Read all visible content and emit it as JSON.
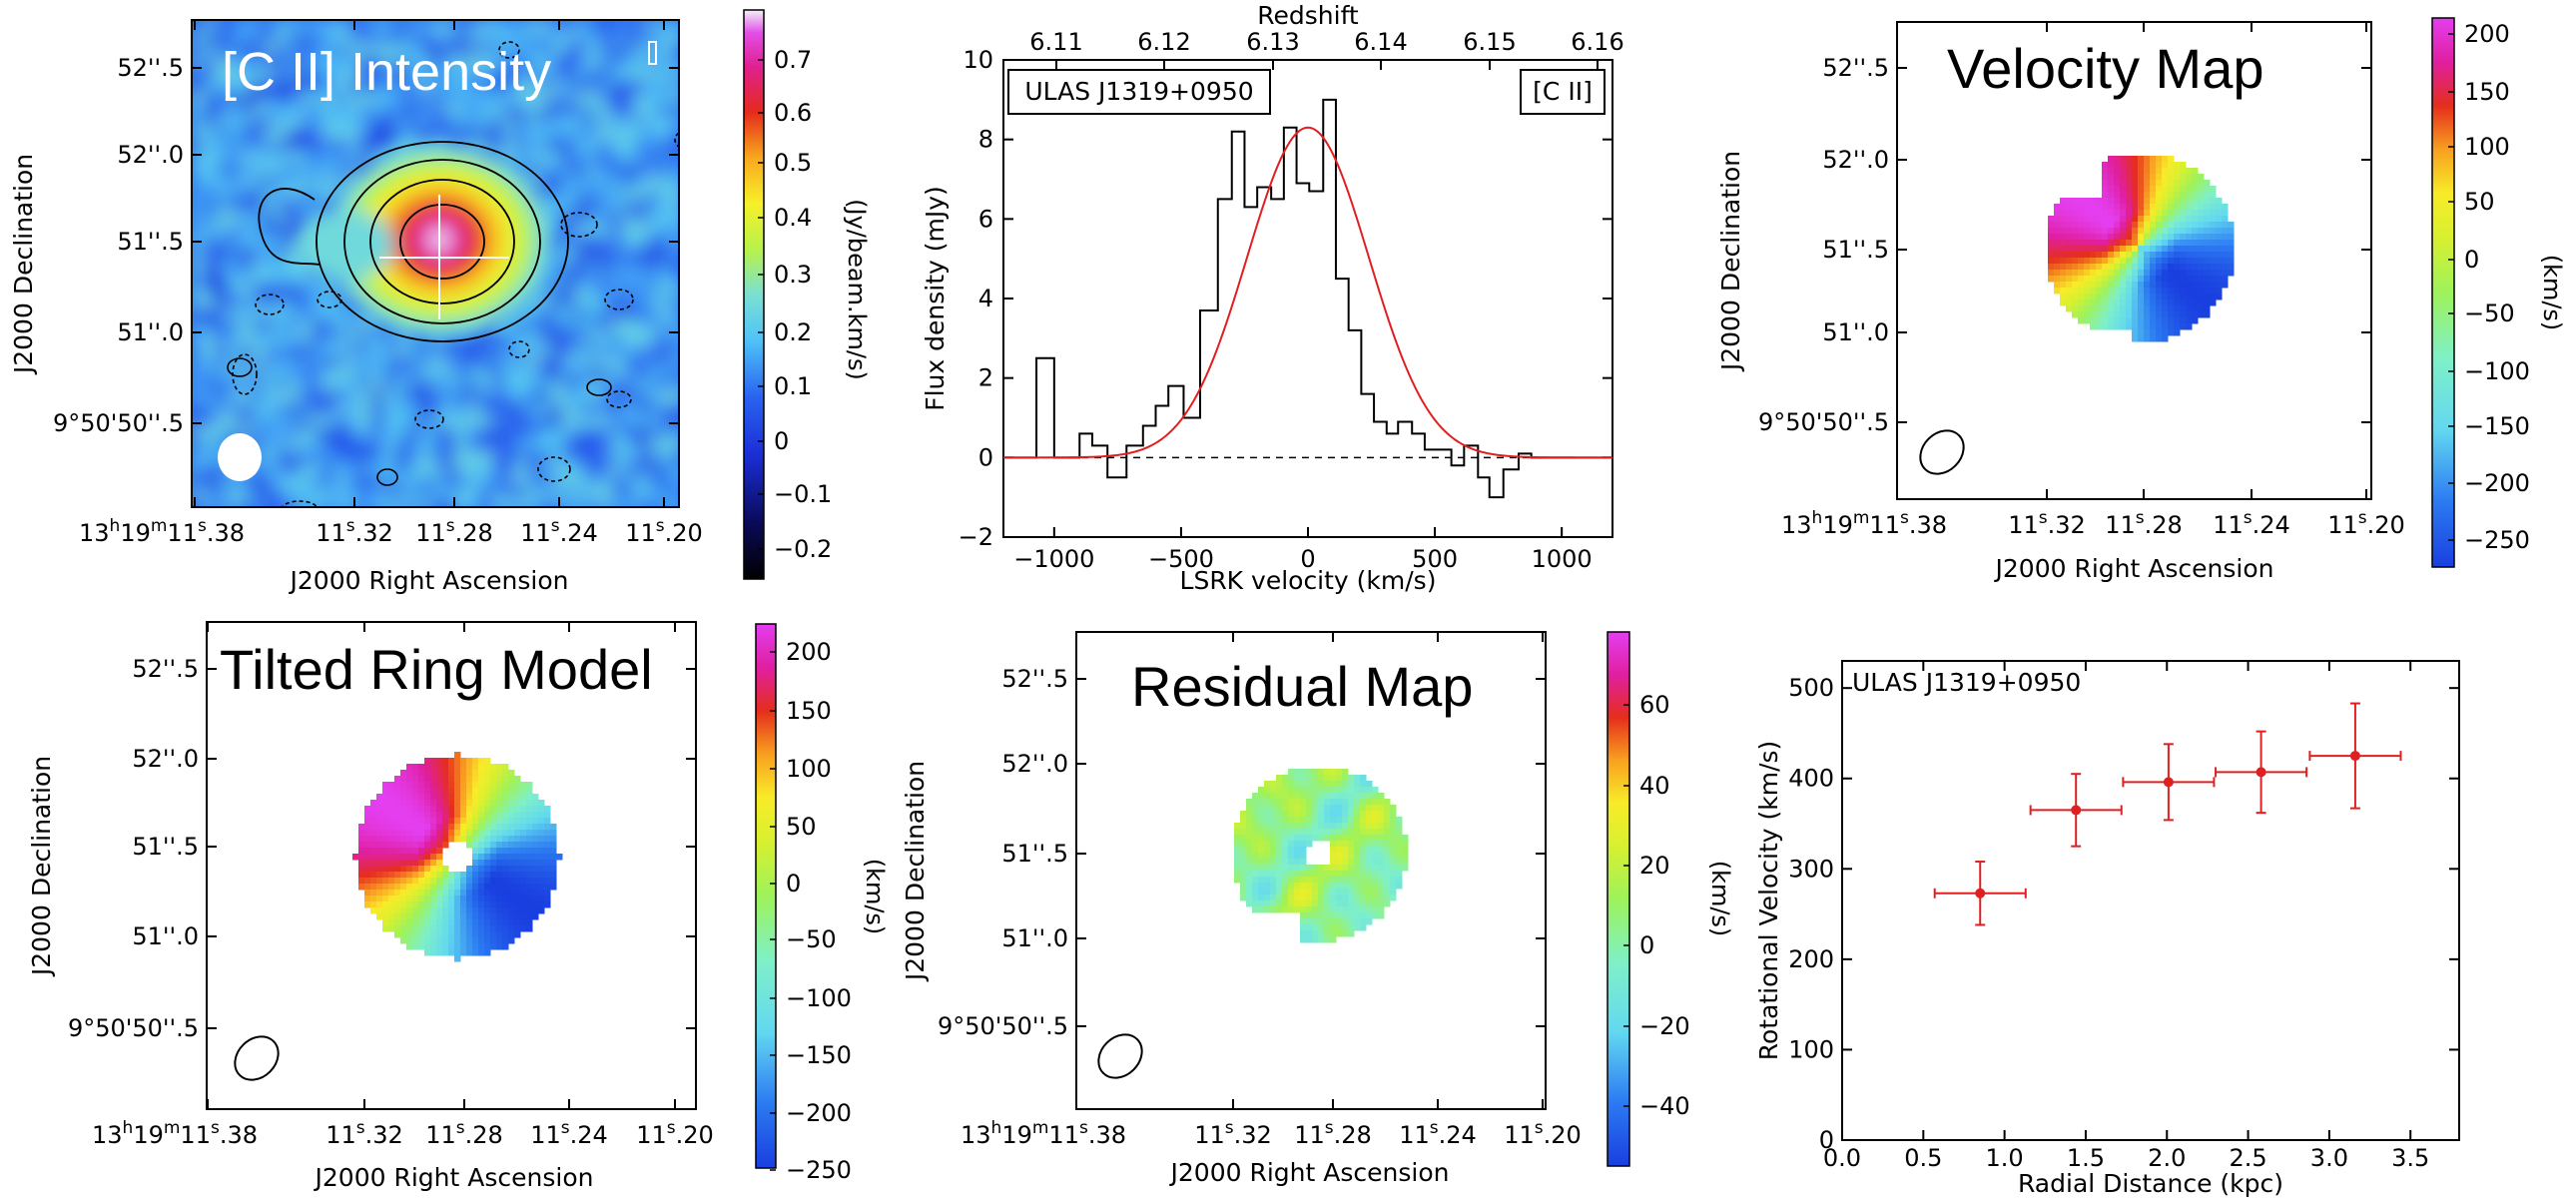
{
  "cbar_cmap": [
    [
      0.0,
      "#000000"
    ],
    [
      0.1,
      "#0a0a5a"
    ],
    [
      0.22,
      "#1b2fd8"
    ],
    [
      0.32,
      "#2a63f0"
    ],
    [
      0.42,
      "#4fc3f7"
    ],
    [
      0.5,
      "#7be0d2"
    ],
    [
      0.58,
      "#b8f24a"
    ],
    [
      0.66,
      "#f7f02a"
    ],
    [
      0.74,
      "#f9a81d"
    ],
    [
      0.82,
      "#e52b1b"
    ],
    [
      0.9,
      "#e0208f"
    ],
    [
      0.96,
      "#e24ee8"
    ],
    [
      1.0,
      "#f4f2f8"
    ]
  ],
  "vel_cmap": [
    [
      0.0,
      "#1a3fe0"
    ],
    [
      0.12,
      "#2c7bf2"
    ],
    [
      0.25,
      "#62d8f0"
    ],
    [
      0.38,
      "#7ff0c8"
    ],
    [
      0.5,
      "#9ef25a"
    ],
    [
      0.6,
      "#d8f030"
    ],
    [
      0.68,
      "#f8ec28"
    ],
    [
      0.76,
      "#f8a020"
    ],
    [
      0.84,
      "#e52e1c"
    ],
    [
      0.92,
      "#e01fa0"
    ],
    [
      1.0,
      "#e43ef0"
    ]
  ],
  "coords": {
    "dec_labels": [
      "52''.5",
      "52''.0",
      "51''.5",
      "51''.0",
      "9°50'50''.5"
    ],
    "ra_labels": [
      "13h19m11s.38",
      "11s.32",
      "11s.28",
      "11s.24",
      "11s.20"
    ],
    "ra_first_main": "13",
    "ra_first_h": "h",
    "ra_first_mid": "19",
    "ra_first_m": "m",
    "ra_first_end": "11",
    "ra_s": "s",
    "ra_tail": [
      ".38",
      ".32",
      ".28",
      ".24",
      ".20"
    ],
    "ra_head": [
      "11",
      "11",
      "11",
      "11"
    ],
    "xlabel": "J2000 Right Ascension",
    "ylabel": "J2000 Declination"
  },
  "panels": {
    "intensity": {
      "title": "[C II] Intensity",
      "cbar_label": "(Jy/beam.km/s)",
      "ticks": [
        "0.7",
        "0.6",
        "0.5",
        "0.4",
        "0.3",
        "0.2",
        "0.1",
        "0",
        "−0.1",
        "−0.2"
      ]
    },
    "velocity": {
      "title": "Velocity Map",
      "cbar_label": "(km/s)",
      "ticks": [
        "200",
        "150",
        "100",
        "50",
        "0",
        "−50",
        "−100",
        "−150",
        "−200",
        "−250"
      ]
    },
    "model": {
      "title": "Tilted Ring Model",
      "cbar_label": "(km/s)",
      "ticks": [
        "200",
        "150",
        "100",
        "50",
        "0",
        "−50",
        "−100",
        "−150",
        "−200",
        "−250"
      ]
    },
    "residual": {
      "title": "Residual Map",
      "cbar_label": "(km/s)",
      "ticks": [
        "60",
        "40",
        "20",
        "0",
        "−20",
        "−40"
      ]
    }
  },
  "spectrum_chart": {
    "type": "line",
    "xlabel": "LSRK velocity (km/s)",
    "ylabel": "Flux density (mJy)",
    "top_label": "Redshift",
    "top_ticks": [
      "6.11",
      "6.12",
      "6.13",
      "6.14",
      "6.15",
      "6.16"
    ],
    "xticks": [
      "−1000",
      "−500",
      "0",
      "500",
      "1000"
    ],
    "yticks": [
      "−2",
      "0",
      "2",
      "4",
      "6",
      "8",
      "10"
    ],
    "box_left": "ULAS J1319+0950",
    "box_right": "[C II]",
    "xlim": [
      -1200,
      1200
    ],
    "ylim": [
      -2,
      10
    ],
    "step_x": [
      -1200,
      -1070,
      -1000,
      -900,
      -850,
      -790,
      -715,
      -650,
      -600,
      -550,
      -490,
      -425,
      -355,
      -300,
      -250,
      -200,
      -145,
      -95,
      -45,
      5,
      60,
      110,
      160,
      210,
      260,
      310,
      355,
      410,
      460,
      515,
      565,
      615,
      670,
      715,
      770,
      830,
      880,
      940,
      1010,
      1200
    ],
    "step_y": [
      0,
      2.5,
      0,
      0.6,
      0.3,
      -0.5,
      0.3,
      0.8,
      1.3,
      1.8,
      1.0,
      3.7,
      6.5,
      8.2,
      6.3,
      6.8,
      6.5,
      8.3,
      6.9,
      6.7,
      9.0,
      4.5,
      3.2,
      1.6,
      0.9,
      0.6,
      0.9,
      0.6,
      0.2,
      0.2,
      -0.2,
      0.3,
      -0.5,
      -1.0,
      -0.3,
      0.1,
      0,
      0,
      0
    ],
    "gauss": {
      "amp": 8.3,
      "center": 0,
      "sigma": 240
    }
  },
  "rotation_chart": {
    "type": "scatter",
    "label": "ULAS J1319+0950",
    "xlabel": "Radial Distance (kpc)",
    "ylabel": "Rotational Velocity (km/s)",
    "xlim": [
      0,
      3.8
    ],
    "ylim": [
      0,
      530
    ],
    "xticks": [
      "0.0",
      "0.5",
      "1.0",
      "1.5",
      "2.0",
      "2.5",
      "3.0",
      "3.5"
    ],
    "yticks": [
      "0",
      "100",
      "200",
      "300",
      "400",
      "500"
    ],
    "x": [
      0.85,
      1.44,
      2.01,
      2.58,
      3.16
    ],
    "y": [
      273,
      365,
      396,
      407,
      425
    ],
    "xerr": [
      0.28,
      0.28,
      0.28,
      0.28,
      0.28
    ],
    "yerr": [
      35,
      40,
      42,
      45,
      58
    ],
    "color": "#e02020"
  }
}
